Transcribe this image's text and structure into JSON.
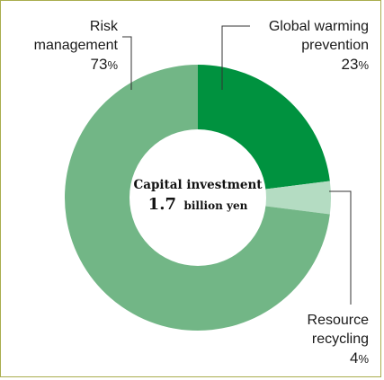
{
  "chart_data": {
    "type": "pie",
    "style": "donut",
    "center": {
      "title": "Capital investment",
      "value": "1.7",
      "unit": "billion yen"
    },
    "slices": [
      {
        "label_lines": [
          "Global warming",
          "prevention"
        ],
        "value": 23,
        "pct_text": "23",
        "color": "#00923f"
      },
      {
        "label_lines": [
          "Resource",
          "recycling"
        ],
        "value": 4,
        "pct_text": "4",
        "color": "#b4dcc2"
      },
      {
        "label_lines": [
          "Risk",
          "management"
        ],
        "value": 73,
        "pct_text": "73",
        "color": "#72b686"
      }
    ],
    "percent_symbol": "%"
  },
  "colors": {
    "frame": "#a9ad4e",
    "leader": "#333333"
  }
}
